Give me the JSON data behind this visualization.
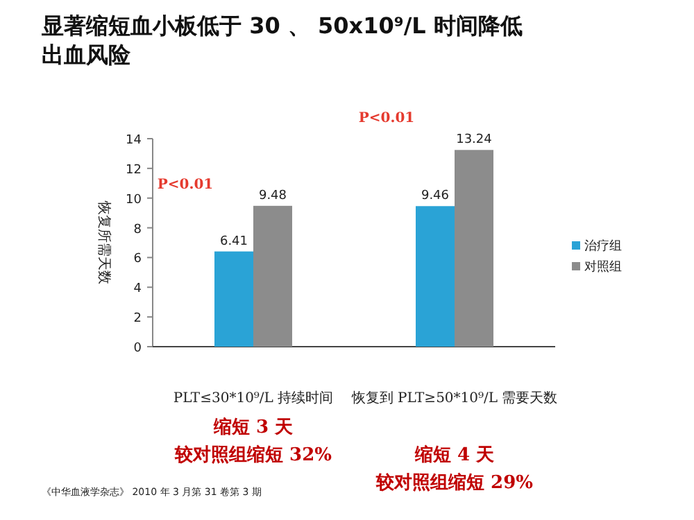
{
  "chart_data": {
    "type": "bar",
    "title": "显著缩短血小板低于 30 、 50x10⁹/L 时间降低出血风险",
    "ylabel": "恢复所需天数",
    "categories": [
      "PLT≤30*10⁹/L 持续时间",
      "恢复到 PLT≥50*10⁹/L 需要天数"
    ],
    "series": [
      {
        "name": "治疗组",
        "color": "#2aa3d6",
        "values": [
          6.41,
          9.46
        ]
      },
      {
        "name": "对照组",
        "color": "#8c8c8c",
        "values": [
          9.48,
          13.24
        ]
      }
    ],
    "ylim": [
      0,
      14
    ],
    "yticks": [
      0,
      2,
      4,
      6,
      8,
      10,
      12,
      14
    ],
    "data_labels": true,
    "legend": "right",
    "grid": false,
    "annotations": [
      "P<0.01",
      "P<0.01",
      "缩短 3 天",
      "较对照组缩短 32%",
      "缩短 4 天",
      "较对照组缩短 29%",
      "《中华血液学杂志》 2010 年 3 月第 31 卷第 3 期"
    ]
  }
}
